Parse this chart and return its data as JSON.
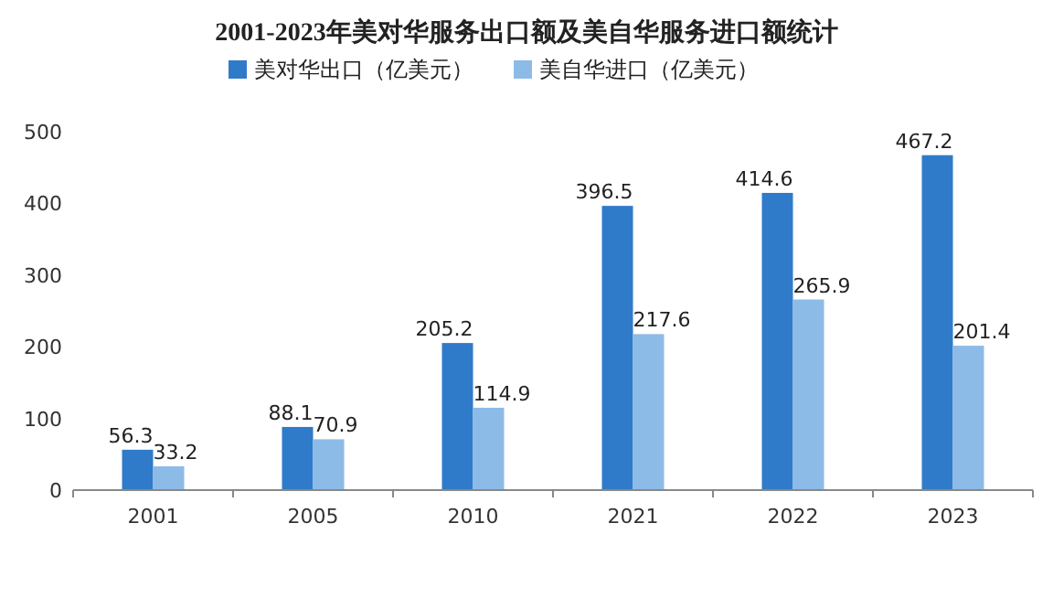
{
  "chart_data": {
    "type": "bar",
    "title": "2001-2023年美对华服务出口额及美自华服务进口额统计",
    "categories": [
      "2001",
      "2005",
      "2010",
      "2021",
      "2022",
      "2023"
    ],
    "series": [
      {
        "name": "美对华出口（亿美元）",
        "color": "#2f7bc9",
        "values": [
          56.3,
          88.1,
          205.2,
          396.5,
          414.6,
          467.2
        ]
      },
      {
        "name": "美自华进口（亿美元）",
        "color": "#8dbbe8",
        "values": [
          33.2,
          70.9,
          114.9,
          217.6,
          265.9,
          201.4
        ]
      }
    ],
    "ylim": [
      0,
      500
    ],
    "yticks": [
      0,
      100,
      200,
      300,
      400,
      500
    ],
    "data_labels": true,
    "legend": "top"
  }
}
